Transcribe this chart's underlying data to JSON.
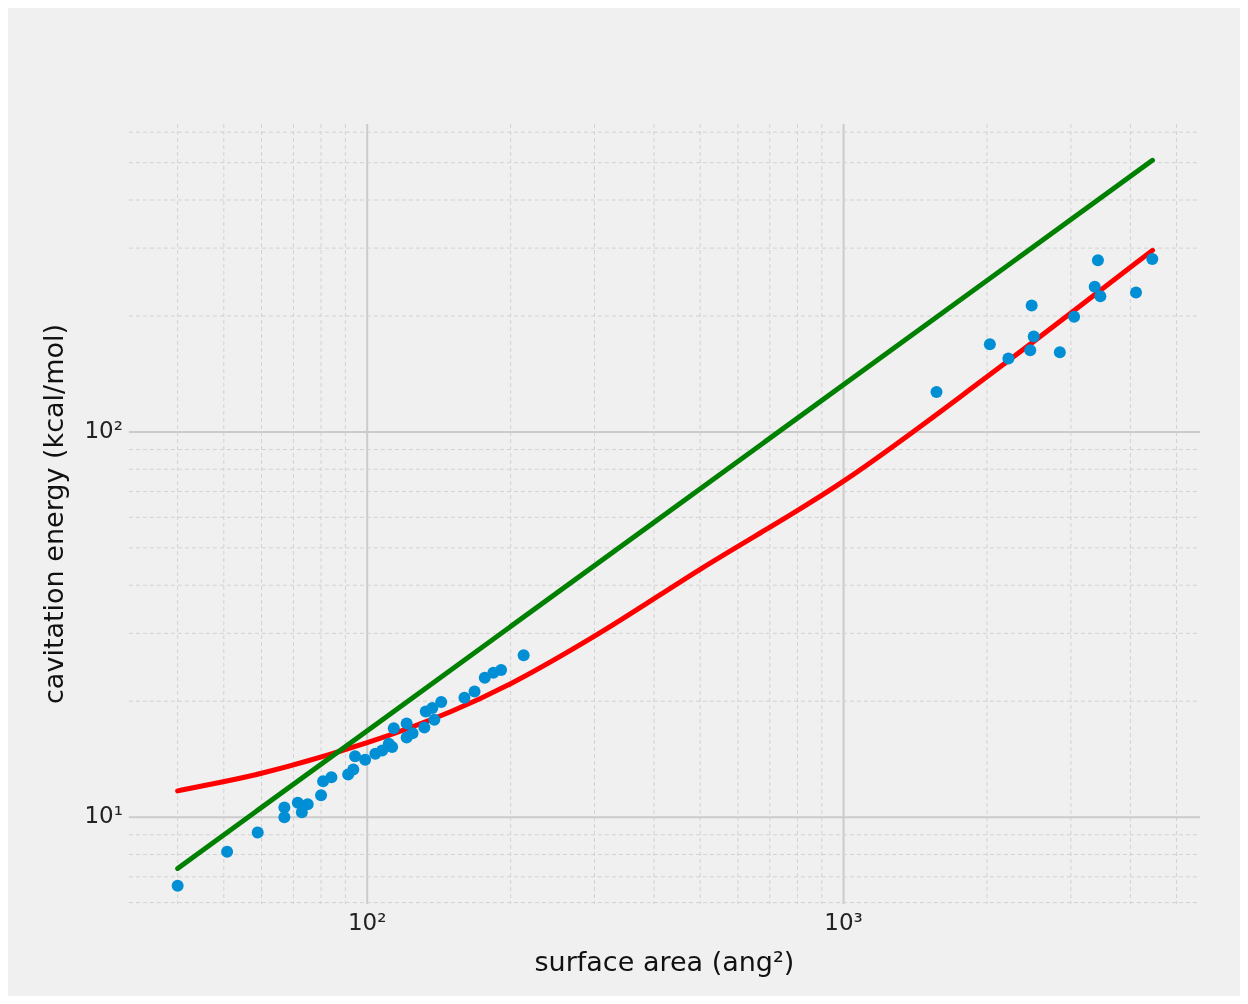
{
  "chart_data": {
    "type": "scatter",
    "xlabel": "surface area (ang²)",
    "ylabel": "cavitation energy (kcal/mol)",
    "log": "xy",
    "grid": true,
    "xlim": [
      31.6,
      5600
    ],
    "ylim": [
      5.95,
      630
    ],
    "xticks": [
      {
        "value": 40,
        "label": null
      },
      {
        "value": 50,
        "label": null
      },
      {
        "value": 60,
        "label": null
      },
      {
        "value": 70,
        "label": null
      },
      {
        "value": 80,
        "label": null
      },
      {
        "value": 90,
        "label": null
      },
      {
        "value": 100,
        "label": "10²"
      },
      {
        "value": 200,
        "label": null
      },
      {
        "value": 300,
        "label": null
      },
      {
        "value": 400,
        "label": null
      },
      {
        "value": 500,
        "label": null
      },
      {
        "value": 600,
        "label": null
      },
      {
        "value": 700,
        "label": null
      },
      {
        "value": 800,
        "label": null
      },
      {
        "value": 900,
        "label": null
      },
      {
        "value": 1000,
        "label": "10³"
      },
      {
        "value": 2000,
        "label": null
      },
      {
        "value": 3000,
        "label": null
      },
      {
        "value": 4000,
        "label": null
      },
      {
        "value": 5000,
        "label": null
      }
    ],
    "yticks": [
      {
        "value": 6,
        "label": null
      },
      {
        "value": 7,
        "label": null
      },
      {
        "value": 8,
        "label": null
      },
      {
        "value": 9,
        "label": null
      },
      {
        "value": 10,
        "label": "10¹"
      },
      {
        "value": 20,
        "label": null
      },
      {
        "value": 30,
        "label": null
      },
      {
        "value": 40,
        "label": null
      },
      {
        "value": 50,
        "label": null
      },
      {
        "value": 60,
        "label": null
      },
      {
        "value": 70,
        "label": null
      },
      {
        "value": 80,
        "label": null
      },
      {
        "value": 90,
        "label": null
      },
      {
        "value": 100,
        "label": "10²"
      },
      {
        "value": 200,
        "label": null
      },
      {
        "value": 300,
        "label": null
      },
      {
        "value": 400,
        "label": null
      },
      {
        "value": 500,
        "label": null
      },
      {
        "value": 600,
        "label": null
      }
    ],
    "series": [
      {
        "marker": "circle",
        "color": "#008fd5",
        "x": [
          40,
          50.8,
          58.9,
          67,
          67,
          71.5,
          72.9,
          75,
          80,
          80.8,
          84.1,
          91.2,
          93.5,
          94.3,
          99,
          104,
          107.5,
          112.8,
          113.7,
          111,
          121,
          121,
          124.5,
          131.8,
          132.7,
          138.3,
          143,
          137,
          160,
          168,
          176.5,
          184,
          191,
          213,
          1567,
          2028,
          2218,
          2482,
          2507,
          2465,
          2844,
          3048,
          3366,
          3419,
          3460,
          4110,
          4447
        ],
        "values": [
          6.64,
          8.13,
          9.12,
          10.6,
          10,
          10.9,
          10.3,
          10.8,
          11.4,
          12.4,
          12.7,
          12.9,
          13.3,
          14.4,
          14.1,
          14.6,
          14.9,
          15.2,
          17,
          15.5,
          17.5,
          16.1,
          16.5,
          17.1,
          18.8,
          17.9,
          19.9,
          19.2,
          20.4,
          21.2,
          23,
          23.7,
          24.1,
          26.3,
          127,
          169,
          155,
          213,
          177,
          163,
          161,
          199,
          238,
          279,
          225,
          230,
          281
        ]
      },
      {
        "type": "line",
        "marker": "none",
        "color": "#008000",
        "x": [
          40,
          4450
        ],
        "values": [
          7.36,
          507
        ]
      },
      {
        "type": "line",
        "marker": "none",
        "color": "#ff0000",
        "x": [
          40,
          60,
          100,
          150,
          200,
          300,
          500,
          1000,
          2000,
          4450
        ],
        "values": [
          11.7,
          13,
          15.6,
          18.8,
          22.2,
          29.5,
          44,
          74.5,
          139,
          296
        ]
      }
    ]
  }
}
